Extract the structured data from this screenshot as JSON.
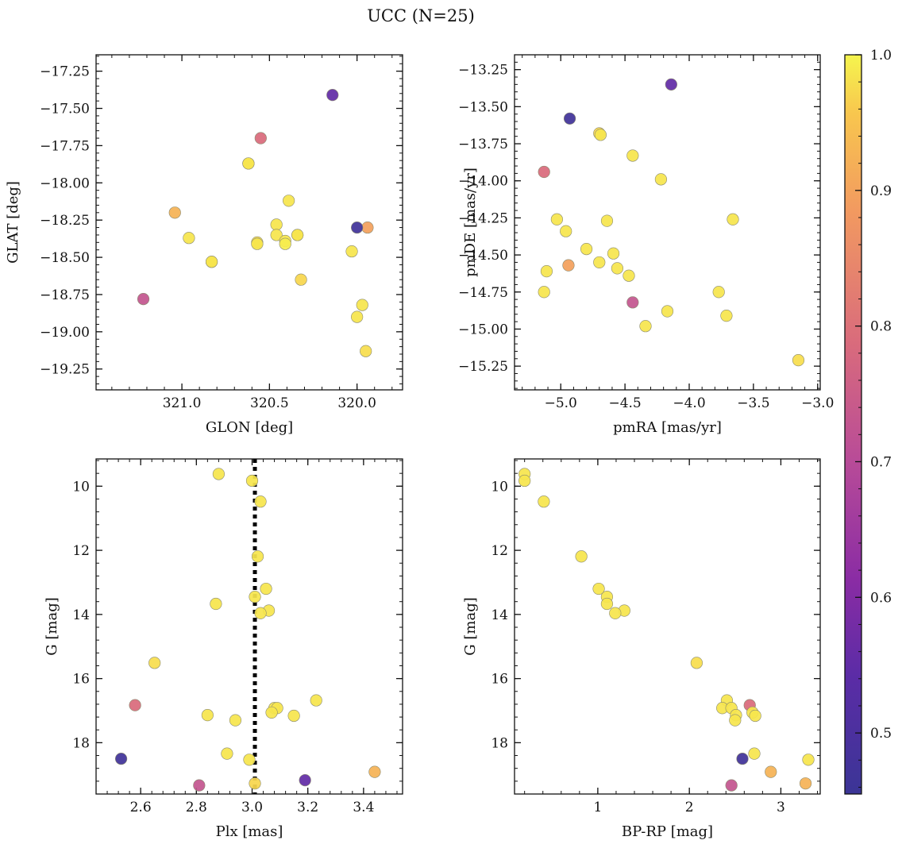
{
  "figure": {
    "title": "UCC (N=25)"
  },
  "colorbar": {
    "colormap": "plasma",
    "range": [
      0.455,
      1.0
    ],
    "ticks": [
      0.5,
      0.6,
      0.7,
      0.8,
      0.9,
      1.0
    ],
    "tick_labels": [
      "0.5",
      "0.6",
      "0.7",
      "0.8",
      "0.9",
      "1.0"
    ]
  },
  "chart_data": [
    {
      "type": "scatter",
      "xlabel": "GLON [deg]",
      "ylabel": "GLAT [deg]",
      "xlim": [
        319.74,
        321.49
      ],
      "ylim": [
        -19.39,
        -17.14
      ],
      "x_inverted": true,
      "xticks": [
        320.0,
        320.5,
        321.0
      ],
      "xtick_labels": [
        "320.0",
        "320.5",
        "321.0"
      ],
      "yticks": [
        -19.25,
        -19.0,
        -18.75,
        -18.5,
        -18.25,
        -18.0,
        -17.75,
        -17.5,
        -17.25
      ],
      "ytick_labels": [
        "−19.25",
        "−19.00",
        "−18.75",
        "−18.50",
        "−18.25",
        "−18.00",
        "−17.75",
        "−17.50",
        "−17.25"
      ],
      "points": [
        {
          "x": 320.14,
          "y": -17.41,
          "c": 0.55
        },
        {
          "x": 320.55,
          "y": -17.7,
          "c": 0.79
        },
        {
          "x": 320.62,
          "y": -17.87,
          "c": 0.97
        },
        {
          "x": 320.62,
          "y": -17.87,
          "c": 0.98
        },
        {
          "x": 320.39,
          "y": -18.12,
          "c": 0.98
        },
        {
          "x": 319.94,
          "y": -18.3,
          "c": 0.88
        },
        {
          "x": 320.0,
          "y": -18.3,
          "c": 0.47
        },
        {
          "x": 320.46,
          "y": -18.28,
          "c": 0.98
        },
        {
          "x": 320.34,
          "y": -18.35,
          "c": 0.97
        },
        {
          "x": 320.34,
          "y": -18.35,
          "c": 0.98
        },
        {
          "x": 320.46,
          "y": -18.35,
          "c": 0.98
        },
        {
          "x": 320.41,
          "y": -18.39,
          "c": 0.98
        },
        {
          "x": 320.57,
          "y": -18.4,
          "c": 0.97
        },
        {
          "x": 320.57,
          "y": -18.41,
          "c": 0.98
        },
        {
          "x": 321.04,
          "y": -18.2,
          "c": 0.91
        },
        {
          "x": 320.96,
          "y": -18.37,
          "c": 0.98
        },
        {
          "x": 320.03,
          "y": -18.46,
          "c": 0.98
        },
        {
          "x": 320.83,
          "y": -18.53,
          "c": 0.96
        },
        {
          "x": 320.83,
          "y": -18.53,
          "c": 0.98
        },
        {
          "x": 320.32,
          "y": -18.65,
          "c": 0.96
        },
        {
          "x": 321.22,
          "y": -18.78,
          "c": 0.73
        },
        {
          "x": 319.97,
          "y": -18.82,
          "c": 0.98
        },
        {
          "x": 320.0,
          "y": -18.9,
          "c": 0.98
        },
        {
          "x": 319.95,
          "y": -19.13,
          "c": 0.97
        },
        {
          "x": 320.41,
          "y": -18.41,
          "c": 0.99
        }
      ]
    },
    {
      "type": "scatter",
      "xlabel": "pmRA [mas/yr]",
      "ylabel": "pmDE [mas/yr]",
      "xlim": [
        -5.36,
        -2.98
      ],
      "ylim": [
        -15.41,
        -13.15
      ],
      "xticks": [
        -5.0,
        -4.5,
        -4.0,
        -3.5,
        -3.0
      ],
      "xtick_labels": [
        "−5.0",
        "−4.5",
        "−4.0",
        "−3.5",
        "−3.0"
      ],
      "yticks": [
        -15.25,
        -15.0,
        -14.75,
        -14.5,
        -14.25,
        -14.0,
        -13.75,
        -13.5,
        -13.25
      ],
      "ytick_labels": [
        "−15.25",
        "−15.00",
        "−14.75",
        "−14.50",
        "−14.25",
        "−14.00",
        "−13.75",
        "−13.50",
        "−13.25"
      ],
      "points": [
        {
          "x": -4.14,
          "y": -13.35,
          "c": 0.55
        },
        {
          "x": -4.93,
          "y": -13.58,
          "c": 0.47
        },
        {
          "x": -4.7,
          "y": -13.68,
          "c": 0.96
        },
        {
          "x": -4.69,
          "y": -13.69,
          "c": 0.98
        },
        {
          "x": -4.44,
          "y": -13.83,
          "c": 0.98
        },
        {
          "x": -5.13,
          "y": -13.94,
          "c": 0.79
        },
        {
          "x": -4.22,
          "y": -13.99,
          "c": 0.98
        },
        {
          "x": -5.03,
          "y": -14.26,
          "c": 0.98
        },
        {
          "x": -4.64,
          "y": -14.27,
          "c": 0.98
        },
        {
          "x": -3.66,
          "y": -14.26,
          "c": 0.98
        },
        {
          "x": -4.96,
          "y": -14.34,
          "c": 0.98
        },
        {
          "x": -4.8,
          "y": -14.46,
          "c": 0.98
        },
        {
          "x": -4.59,
          "y": -14.49,
          "c": 0.98
        },
        {
          "x": -4.7,
          "y": -14.55,
          "c": 0.98
        },
        {
          "x": -4.94,
          "y": -14.57,
          "c": 0.88
        },
        {
          "x": -5.11,
          "y": -14.61,
          "c": 0.98
        },
        {
          "x": -4.56,
          "y": -14.59,
          "c": 0.98
        },
        {
          "x": -4.47,
          "y": -14.64,
          "c": 0.98
        },
        {
          "x": -5.13,
          "y": -14.75,
          "c": 0.98
        },
        {
          "x": -3.77,
          "y": -14.75,
          "c": 0.98
        },
        {
          "x": -4.44,
          "y": -14.82,
          "c": 0.73
        },
        {
          "x": -4.17,
          "y": -14.88,
          "c": 0.98
        },
        {
          "x": -3.71,
          "y": -14.91,
          "c": 0.98
        },
        {
          "x": -4.34,
          "y": -14.98,
          "c": 0.98
        },
        {
          "x": -3.15,
          "y": -15.21,
          "c": 0.97
        }
      ]
    },
    {
      "type": "scatter",
      "xlabel": "Plx [mas]",
      "ylabel": "G [mag]",
      "xlim": [
        2.44,
        3.54
      ],
      "ylim": [
        19.6,
        9.15
      ],
      "y_inverted": true,
      "vline": {
        "x": 3.01,
        "style": "dotted"
      },
      "xticks": [
        2.6,
        2.8,
        3.0,
        3.2,
        3.4
      ],
      "xtick_labels": [
        "2.6",
        "2.8",
        "3.0",
        "3.2",
        "3.4"
      ],
      "yticks": [
        10,
        12,
        14,
        16,
        18
      ],
      "ytick_labels": [
        "10",
        "12",
        "14",
        "16",
        "18"
      ],
      "points": [
        {
          "x": 2.88,
          "y": 9.62,
          "c": 0.98
        },
        {
          "x": 3.0,
          "y": 9.83,
          "c": 0.98
        },
        {
          "x": 3.03,
          "y": 10.48,
          "c": 0.98
        },
        {
          "x": 3.02,
          "y": 12.19,
          "c": 0.98
        },
        {
          "x": 3.05,
          "y": 13.2,
          "c": 0.98
        },
        {
          "x": 3.01,
          "y": 13.45,
          "c": 0.98
        },
        {
          "x": 2.87,
          "y": 13.67,
          "c": 0.98
        },
        {
          "x": 3.06,
          "y": 13.88,
          "c": 0.98
        },
        {
          "x": 3.03,
          "y": 13.96,
          "c": 0.98
        },
        {
          "x": 2.65,
          "y": 15.51,
          "c": 0.97
        },
        {
          "x": 3.23,
          "y": 16.68,
          "c": 0.98
        },
        {
          "x": 2.58,
          "y": 16.83,
          "c": 0.79
        },
        {
          "x": 3.08,
          "y": 16.92,
          "c": 0.98
        },
        {
          "x": 3.09,
          "y": 16.92,
          "c": 0.98
        },
        {
          "x": 3.07,
          "y": 17.06,
          "c": 0.98
        },
        {
          "x": 2.84,
          "y": 17.14,
          "c": 0.98
        },
        {
          "x": 3.15,
          "y": 17.16,
          "c": 0.98
        },
        {
          "x": 2.94,
          "y": 17.3,
          "c": 0.98
        },
        {
          "x": 2.91,
          "y": 18.34,
          "c": 0.98
        },
        {
          "x": 2.53,
          "y": 18.5,
          "c": 0.47
        },
        {
          "x": 2.99,
          "y": 18.53,
          "c": 0.98
        },
        {
          "x": 3.44,
          "y": 18.91,
          "c": 0.91
        },
        {
          "x": 3.19,
          "y": 19.17,
          "c": 0.55
        },
        {
          "x": 2.81,
          "y": 19.33,
          "c": 0.73
        },
        {
          "x": 3.01,
          "y": 19.27,
          "c": 0.96
        }
      ]
    },
    {
      "type": "scatter",
      "xlabel": "BP-RP [mag]",
      "ylabel": "G [mag]",
      "xlim": [
        0.09,
        3.43
      ],
      "ylim": [
        19.6,
        9.15
      ],
      "y_inverted": true,
      "xticks": [
        1,
        2,
        3
      ],
      "xtick_labels": [
        "1",
        "2",
        "3"
      ],
      "yticks": [
        10,
        12,
        14,
        16,
        18
      ],
      "ytick_labels": [
        "10",
        "12",
        "14",
        "16",
        "18"
      ],
      "points": [
        {
          "x": 0.2,
          "y": 9.62,
          "c": 0.98
        },
        {
          "x": 0.2,
          "y": 9.83,
          "c": 0.98
        },
        {
          "x": 0.41,
          "y": 10.48,
          "c": 0.98
        },
        {
          "x": 0.82,
          "y": 12.19,
          "c": 0.98
        },
        {
          "x": 1.01,
          "y": 13.2,
          "c": 0.98
        },
        {
          "x": 1.1,
          "y": 13.45,
          "c": 0.98
        },
        {
          "x": 1.1,
          "y": 13.67,
          "c": 0.98
        },
        {
          "x": 1.29,
          "y": 13.88,
          "c": 0.98
        },
        {
          "x": 1.19,
          "y": 13.96,
          "c": 0.98
        },
        {
          "x": 2.08,
          "y": 15.51,
          "c": 0.97
        },
        {
          "x": 2.41,
          "y": 16.68,
          "c": 0.98
        },
        {
          "x": 2.66,
          "y": 16.83,
          "c": 0.79
        },
        {
          "x": 2.36,
          "y": 16.92,
          "c": 0.98
        },
        {
          "x": 2.46,
          "y": 16.92,
          "c": 0.98
        },
        {
          "x": 2.69,
          "y": 17.06,
          "c": 0.98
        },
        {
          "x": 2.51,
          "y": 17.14,
          "c": 0.98
        },
        {
          "x": 2.72,
          "y": 17.16,
          "c": 0.98
        },
        {
          "x": 2.5,
          "y": 17.3,
          "c": 0.98
        },
        {
          "x": 2.71,
          "y": 18.34,
          "c": 0.98
        },
        {
          "x": 2.58,
          "y": 18.5,
          "c": 0.47
        },
        {
          "x": 3.3,
          "y": 18.53,
          "c": 0.98
        },
        {
          "x": 2.89,
          "y": 18.91,
          "c": 0.91
        },
        {
          "x": 2.46,
          "y": 19.33,
          "c": 0.73
        },
        {
          "x": 3.27,
          "y": 19.27,
          "c": 0.91
        }
      ]
    }
  ]
}
